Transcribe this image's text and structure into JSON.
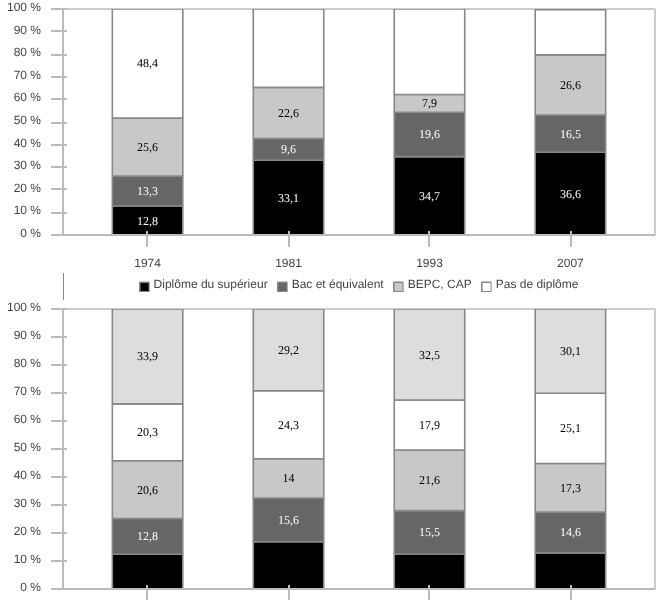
{
  "chart_data": [
    {
      "type": "bar",
      "stacked": true,
      "categories": [
        "1974",
        "1981",
        "1993",
        "2007"
      ],
      "ylim": [
        0,
        100
      ],
      "yticks": [
        {
          "value": 0,
          "label": "0 %"
        },
        {
          "value": 10,
          "label": "10 %"
        },
        {
          "value": 20,
          "label": "20 %"
        },
        {
          "value": 30,
          "label": "30 %"
        },
        {
          "value": 40,
          "label": "40 %"
        },
        {
          "value": 50,
          "label": "50 %"
        },
        {
          "value": 60,
          "label": "60 %"
        },
        {
          "value": 70,
          "label": "70 %"
        },
        {
          "value": 80,
          "label": "80 %"
        },
        {
          "value": 90,
          "label": "90 %"
        },
        {
          "value": 100,
          "label": "100 %"
        }
      ],
      "legend": "bottom",
      "series": [
        {
          "name": "Diplôme du supérieur",
          "color": "#000000",
          "values": [
            12.8,
            33.1,
            34.7,
            36.6
          ],
          "value_labels": [
            "12,8",
            "33,1",
            "34,7",
            "36,6"
          ]
        },
        {
          "name": "Bac et équivalent",
          "color": "#666666",
          "values": [
            13.3,
            9.6,
            19.6,
            16.5
          ],
          "value_labels": [
            "13,3",
            "9,6",
            "19,6",
            "16,5"
          ]
        },
        {
          "name": "BEPC, CAP",
          "color": "#c8c8c8",
          "values": [
            25.6,
            22.6,
            7.9,
            26.6
          ],
          "value_labels": [
            "25,6",
            "22,6",
            "7,9",
            "26,6"
          ]
        },
        {
          "name": "Pas de diplôme",
          "color": "#ffffff",
          "values": [
            48.4,
            35,
            38,
            20
          ],
          "value_labels": [
            "48,4",
            null,
            null,
            null
          ]
        }
      ]
    },
    {
      "type": "bar",
      "stacked": true,
      "categories": [
        null,
        null,
        null,
        null
      ],
      "ylim": [
        0,
        100
      ],
      "yticks": [
        {
          "value": 0,
          "label": "0 %"
        },
        {
          "value": 10,
          "label": "10 %"
        },
        {
          "value": 20,
          "label": "20 %"
        },
        {
          "value": 30,
          "label": "30 %"
        },
        {
          "value": 40,
          "label": "40 %"
        },
        {
          "value": 50,
          "label": "50 %"
        },
        {
          "value": 60,
          "label": "60 %"
        },
        {
          "value": 70,
          "label": "70 %"
        },
        {
          "value": 80,
          "label": "80 %"
        },
        {
          "value": 90,
          "label": "90 %"
        },
        {
          "value": 100,
          "label": "100 %"
        }
      ],
      "series": [
        {
          "color": "#000000",
          "values": [
            12.4,
            16.9,
            12.5,
            12.9
          ]
        },
        {
          "color": "#666666",
          "values": [
            12.8,
            15.6,
            15.5,
            14.6
          ],
          "value_labels": [
            "12,8",
            "15,6",
            "15,5",
            "14,6"
          ]
        },
        {
          "color": "#c8c8c8",
          "values": [
            20.6,
            14,
            21.6,
            17.3
          ],
          "value_labels": [
            "20,6",
            "14",
            "21,6",
            "17,3"
          ]
        },
        {
          "color": "#ffffff",
          "values": [
            20.3,
            24.3,
            17.9,
            25.1
          ],
          "value_labels": [
            "20,3",
            "24,3",
            "17,9",
            "25,1"
          ]
        },
        {
          "color": "#dddddd",
          "values": [
            33.9,
            29.2,
            32.5,
            30.1
          ],
          "value_labels": [
            "33,9",
            "29,2",
            "32,5",
            "30,1"
          ]
        }
      ]
    }
  ]
}
